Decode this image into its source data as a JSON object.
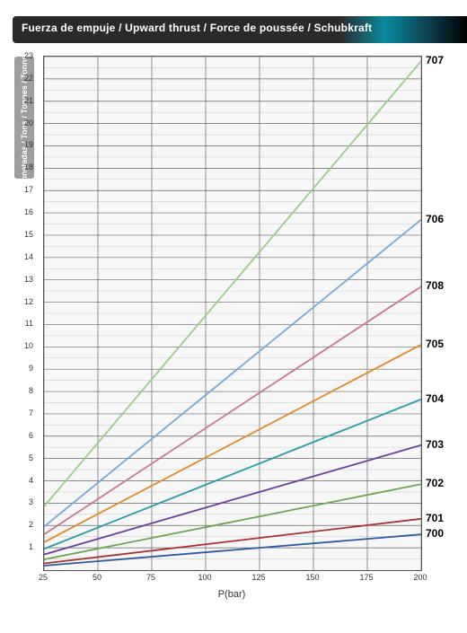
{
  "header": {
    "title": "Fuerza de empuje / Upward thrust / Force de poussée / Schubkraft"
  },
  "chart": {
    "type": "line",
    "xlabel": "P(bar)",
    "ylabel": "Toneladas / Tons / Tonnes / Tonnen",
    "xlim": [
      25,
      200
    ],
    "ylim": [
      0,
      23
    ],
    "xticks": [
      25,
      50,
      75,
      100,
      125,
      150,
      175,
      200
    ],
    "yticks": [
      1,
      2,
      3,
      4,
      5,
      6,
      7,
      8,
      9,
      10,
      11,
      12,
      13,
      14,
      15,
      16,
      17,
      18,
      19,
      20,
      21,
      22,
      23
    ],
    "grid_major_color": "#666666",
    "grid_minor_color": "#d0d0d0",
    "background_color": "#f7f7f7",
    "line_width": 1.8,
    "series": [
      {
        "label": "700",
        "color": "#2b5aa8",
        "y0": 0.2,
        "y1": 1.6
      },
      {
        "label": "701",
        "color": "#a83232",
        "y0": 0.3,
        "y1": 2.3
      },
      {
        "label": "702",
        "color": "#6aa84f",
        "y0": 0.48,
        "y1": 3.85
      },
      {
        "label": "703",
        "color": "#6a3fa0",
        "y0": 0.7,
        "y1": 5.6
      },
      {
        "label": "704",
        "color": "#2a9aa8",
        "y0": 0.95,
        "y1": 7.65
      },
      {
        "label": "705",
        "color": "#e08a2a",
        "y0": 1.25,
        "y1": 10.1
      },
      {
        "label": "708",
        "color": "#c97a8a",
        "y0": 1.6,
        "y1": 12.7
      },
      {
        "label": "706",
        "color": "#7aa8d6",
        "y0": 1.95,
        "y1": 15.7
      },
      {
        "label": "707",
        "color": "#9acd8a",
        "y0": 2.85,
        "y1": 22.8
      }
    ]
  }
}
